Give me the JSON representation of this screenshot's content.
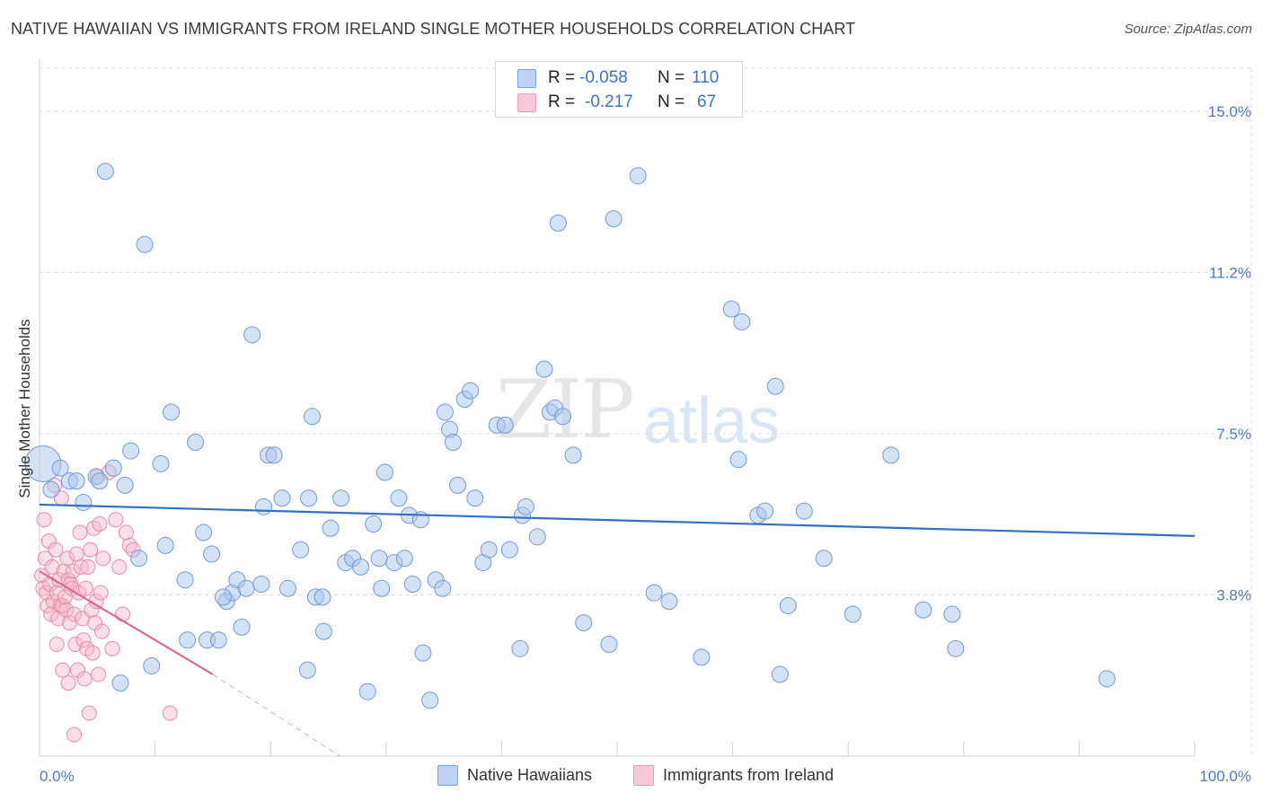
{
  "title": "NATIVE HAWAIIAN VS IMMIGRANTS FROM IRELAND SINGLE MOTHER HOUSEHOLDS CORRELATION CHART",
  "source": "Source: ZipAtlas.com",
  "watermark": {
    "zip": "ZIP",
    "atlas": "atlas"
  },
  "colors": {
    "blue_fill": "#a9c6ee",
    "blue_stroke": "#6f9bd8",
    "blue_line": "#3470c6",
    "pink_fill": "#f5b8ca",
    "pink_stroke": "#e98aa7",
    "pink_line": "#e0608a",
    "tick_text": "#4a7bd0",
    "grid": "#dddddd"
  },
  "legend": {
    "rows": [
      {
        "r_label": "R =",
        "r_value": "-0.058",
        "n_label": "N =",
        "n_value": "110"
      },
      {
        "r_label": "R =",
        "r_value": "-0.217",
        "n_label": "N =",
        "n_value": "67"
      }
    ]
  },
  "bottom_legend": {
    "blue": "Native Hawaiians",
    "pink": "Immigrants from Ireland"
  },
  "chart_data": {
    "type": "scatter",
    "title": "NATIVE HAWAIIAN VS IMMIGRANTS FROM IRELAND SINGLE MOTHER HOUSEHOLDS CORRELATION CHART",
    "xlabel": "",
    "ylabel": "Single Mother Households",
    "xlim": [
      0,
      100
    ],
    "ylim": [
      0,
      16
    ],
    "x_tick_labels": [
      "0.0%",
      "100.0%"
    ],
    "y_ticks": [
      3.75,
      7.5,
      11.25,
      15.0
    ],
    "y_tick_labels": [
      "3.8%",
      "7.5%",
      "11.2%",
      "15.0%"
    ],
    "series": [
      {
        "name": "Native Hawaiians",
        "R": -0.058,
        "N": 110,
        "trend": {
          "x": [
            0,
            100
          ],
          "y": [
            5.85,
            5.12
          ]
        },
        "points": [
          [
            0.3,
            6.8
          ],
          [
            5.7,
            13.6
          ],
          [
            9.1,
            11.9
          ],
          [
            18.4,
            9.8
          ],
          [
            11.4,
            8.0
          ],
          [
            13.5,
            7.3
          ],
          [
            7.9,
            7.1
          ],
          [
            10.5,
            6.8
          ],
          [
            6.4,
            6.7
          ],
          [
            1.8,
            6.7
          ],
          [
            2.6,
            6.4
          ],
          [
            4.9,
            6.5
          ],
          [
            3.2,
            6.4
          ],
          [
            5.2,
            6.4
          ],
          [
            7.4,
            6.3
          ],
          [
            1.0,
            6.2
          ],
          [
            3.8,
            5.9
          ],
          [
            14.2,
            5.2
          ],
          [
            10.9,
            4.9
          ],
          [
            8.6,
            4.6
          ],
          [
            12.6,
            4.1
          ],
          [
            14.9,
            4.7
          ],
          [
            16.2,
            3.6
          ],
          [
            16.7,
            3.8
          ],
          [
            15.9,
            3.7
          ],
          [
            17.1,
            4.1
          ],
          [
            17.5,
            3.0
          ],
          [
            17.9,
            3.9
          ],
          [
            19.2,
            4.0
          ],
          [
            12.8,
            2.7
          ],
          [
            14.5,
            2.7
          ],
          [
            15.5,
            2.7
          ],
          [
            9.7,
            2.1
          ],
          [
            7.0,
            1.7
          ],
          [
            19.4,
            5.8
          ],
          [
            19.8,
            7.0
          ],
          [
            20.3,
            7.0
          ],
          [
            21.0,
            6.0
          ],
          [
            21.5,
            3.9
          ],
          [
            22.6,
            4.8
          ],
          [
            23.3,
            6.0
          ],
          [
            23.6,
            7.9
          ],
          [
            23.2,
            2.0
          ],
          [
            23.9,
            3.7
          ],
          [
            24.5,
            3.7
          ],
          [
            24.6,
            2.9
          ],
          [
            25.2,
            5.3
          ],
          [
            26.1,
            6.0
          ],
          [
            26.5,
            4.5
          ],
          [
            27.1,
            4.6
          ],
          [
            27.8,
            4.4
          ],
          [
            28.4,
            1.5
          ],
          [
            28.9,
            5.4
          ],
          [
            29.4,
            4.6
          ],
          [
            29.6,
            3.9
          ],
          [
            29.9,
            6.6
          ],
          [
            30.7,
            4.5
          ],
          [
            31.1,
            6.0
          ],
          [
            31.6,
            4.6
          ],
          [
            32.0,
            5.6
          ],
          [
            32.3,
            4.0
          ],
          [
            33.0,
            5.5
          ],
          [
            33.2,
            2.4
          ],
          [
            33.8,
            1.3
          ],
          [
            34.3,
            4.1
          ],
          [
            34.9,
            3.9
          ],
          [
            35.1,
            8.0
          ],
          [
            35.5,
            7.6
          ],
          [
            35.8,
            7.3
          ],
          [
            36.2,
            6.3
          ],
          [
            36.8,
            8.3
          ],
          [
            37.3,
            8.5
          ],
          [
            37.7,
            6.0
          ],
          [
            38.4,
            4.5
          ],
          [
            38.9,
            4.8
          ],
          [
            39.6,
            7.7
          ],
          [
            40.3,
            7.7
          ],
          [
            40.7,
            4.8
          ],
          [
            41.6,
            2.5
          ],
          [
            41.8,
            5.6
          ],
          [
            42.1,
            5.8
          ],
          [
            43.1,
            5.1
          ],
          [
            43.7,
            9.0
          ],
          [
            44.2,
            8.0
          ],
          [
            44.9,
            12.4
          ],
          [
            44.6,
            8.1
          ],
          [
            45.3,
            7.9
          ],
          [
            46.2,
            7.0
          ],
          [
            47.1,
            3.1
          ],
          [
            49.7,
            12.5
          ],
          [
            49.3,
            2.6
          ],
          [
            51.8,
            13.5
          ],
          [
            53.2,
            3.8
          ],
          [
            54.5,
            3.6
          ],
          [
            57.3,
            2.3
          ],
          [
            59.9,
            10.4
          ],
          [
            60.8,
            10.1
          ],
          [
            60.5,
            6.9
          ],
          [
            62.2,
            5.6
          ],
          [
            62.8,
            5.7
          ],
          [
            63.7,
            8.6
          ],
          [
            64.1,
            1.9
          ],
          [
            64.8,
            3.5
          ],
          [
            66.2,
            5.7
          ],
          [
            67.9,
            4.6
          ],
          [
            70.4,
            3.3
          ],
          [
            73.7,
            7.0
          ],
          [
            76.5,
            3.4
          ],
          [
            79.0,
            3.3
          ],
          [
            79.3,
            2.5
          ],
          [
            92.4,
            1.8
          ]
        ]
      },
      {
        "name": "Immigrants from Ireland",
        "R": -0.217,
        "N": 67,
        "trend": {
          "x": [
            0,
            15
          ],
          "y": [
            4.3,
            1.9
          ]
        },
        "trend_dashed": {
          "x": [
            15,
            26
          ],
          "y": [
            1.9,
            0.0
          ]
        },
        "points": [
          [
            0.2,
            4.2
          ],
          [
            0.3,
            3.9
          ],
          [
            0.4,
            5.5
          ],
          [
            0.5,
            4.6
          ],
          [
            0.6,
            3.8
          ],
          [
            0.7,
            3.5
          ],
          [
            0.8,
            5.0
          ],
          [
            0.9,
            4.0
          ],
          [
            1.0,
            3.3
          ],
          [
            1.1,
            4.4
          ],
          [
            1.2,
            3.6
          ],
          [
            1.3,
            6.3
          ],
          [
            1.4,
            4.8
          ],
          [
            1.5,
            3.8
          ],
          [
            1.6,
            3.2
          ],
          [
            1.7,
            4.1
          ],
          [
            1.8,
            3.5
          ],
          [
            1.9,
            6.0
          ],
          [
            2.0,
            3.5
          ],
          [
            2.1,
            4.3
          ],
          [
            2.2,
            3.7
          ],
          [
            2.3,
            3.4
          ],
          [
            2.4,
            4.6
          ],
          [
            2.5,
            4.1
          ],
          [
            2.6,
            3.1
          ],
          [
            2.7,
            4.0
          ],
          [
            2.8,
            3.9
          ],
          [
            2.9,
            4.3
          ],
          [
            3.0,
            3.3
          ],
          [
            3.1,
            2.6
          ],
          [
            3.2,
            4.7
          ],
          [
            3.3,
            2.0
          ],
          [
            3.4,
            3.8
          ],
          [
            3.5,
            5.2
          ],
          [
            3.6,
            4.4
          ],
          [
            3.7,
            3.2
          ],
          [
            3.8,
            2.7
          ],
          [
            3.9,
            1.8
          ],
          [
            4.0,
            3.9
          ],
          [
            4.1,
            2.5
          ],
          [
            4.2,
            4.4
          ],
          [
            4.3,
            1.0
          ],
          [
            4.4,
            4.8
          ],
          [
            4.5,
            3.4
          ],
          [
            4.6,
            2.4
          ],
          [
            4.7,
            5.3
          ],
          [
            4.8,
            3.1
          ],
          [
            4.9,
            3.6
          ],
          [
            5.0,
            6.5
          ],
          [
            5.1,
            1.9
          ],
          [
            5.2,
            5.4
          ],
          [
            5.3,
            3.8
          ],
          [
            5.4,
            2.9
          ],
          [
            5.5,
            4.6
          ],
          [
            6.0,
            6.6
          ],
          [
            6.3,
            2.5
          ],
          [
            6.6,
            5.5
          ],
          [
            6.9,
            4.4
          ],
          [
            7.2,
            3.3
          ],
          [
            7.5,
            5.2
          ],
          [
            7.8,
            4.9
          ],
          [
            8.1,
            4.8
          ],
          [
            2.0,
            2.0
          ],
          [
            1.5,
            2.6
          ],
          [
            3.0,
            0.5
          ],
          [
            11.3,
            1.0
          ],
          [
            2.5,
            1.7
          ]
        ]
      }
    ]
  }
}
